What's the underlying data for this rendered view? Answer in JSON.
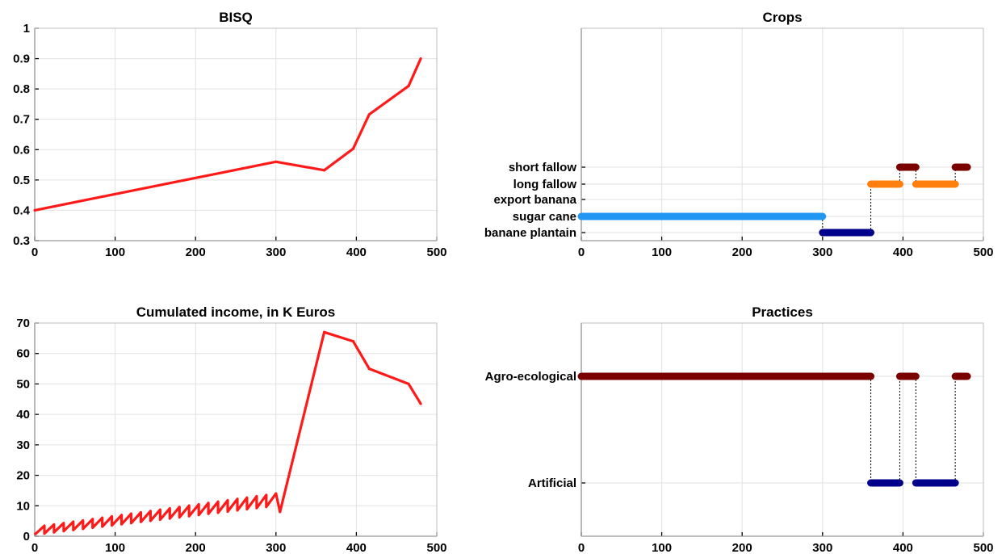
{
  "chart_data": [
    {
      "type": "line",
      "title": "BISQ",
      "xlim": [
        0,
        500
      ],
      "ylim": [
        0.3,
        1
      ],
      "xticks": [
        "0",
        "100",
        "200",
        "300",
        "400",
        "500"
      ],
      "yticks": [
        "0.3",
        "0.4",
        "0.5",
        "0.6",
        "0.7",
        "0.8",
        "0.9",
        "1"
      ],
      "grid": true,
      "series": [
        {
          "color": "#ff1a1a",
          "x": [
            0,
            300,
            360,
            396,
            416,
            465,
            480
          ],
          "y": [
            0.4,
            0.56,
            0.532,
            0.603,
            0.716,
            0.81,
            0.9
          ]
        }
      ]
    },
    {
      "type": "scatter",
      "title": "Crops",
      "xlim": [
        0,
        500
      ],
      "xticks": [
        "0",
        "100",
        "200",
        "300",
        "400",
        "500"
      ],
      "categories": [
        "banane plantain",
        "sugar cane",
        "export banana",
        "long fallow",
        "short fallow"
      ],
      "grid": true,
      "segments": [
        {
          "category": "sugar cane",
          "x": [
            0,
            300
          ],
          "color": "#2196f3"
        },
        {
          "category": "banane plantain",
          "x": [
            300,
            360
          ],
          "color": "#00008b"
        },
        {
          "category": "long fallow",
          "x": [
            360,
            396
          ],
          "color": "#ff7f0e"
        },
        {
          "category": "short fallow",
          "x": [
            396,
            416
          ],
          "color": "#7a0000"
        },
        {
          "category": "long fallow",
          "x": [
            416,
            465
          ],
          "color": "#ff7f0e"
        },
        {
          "category": "short fallow",
          "x": [
            465,
            480
          ],
          "color": "#7a0000"
        }
      ]
    },
    {
      "type": "line",
      "title": "Cumulated income, in K Euros",
      "xlim": [
        0,
        500
      ],
      "ylim": [
        0,
        70
      ],
      "xticks": [
        "0",
        "100",
        "200",
        "300",
        "400",
        "500"
      ],
      "yticks": [
        "0",
        "10",
        "20",
        "30",
        "40",
        "50",
        "60",
        "70"
      ],
      "grid": true,
      "series": [
        {
          "color": "#ff1a1a",
          "sawtooth": {
            "x_start": 0,
            "x_end": 300,
            "period": 12,
            "low_start": 0.5,
            "low_end": 10,
            "high_start": 3,
            "high_end": 14
          },
          "x": [
            300,
            305,
            360,
            396,
            416,
            465,
            480
          ],
          "y": [
            14,
            8,
            67,
            64,
            55,
            50,
            43.5
          ]
        }
      ]
    },
    {
      "type": "scatter",
      "title": "Practices",
      "xlim": [
        0,
        500
      ],
      "xticks": [
        "0",
        "100",
        "200",
        "300",
        "400",
        "500"
      ],
      "categories": [
        "Artificial",
        "Agro-ecological"
      ],
      "grid": true,
      "segments": [
        {
          "category": "Agro-ecological",
          "x": [
            0,
            360
          ],
          "color": "#7a0000"
        },
        {
          "category": "Artificial",
          "x": [
            360,
            396
          ],
          "color": "#00008b"
        },
        {
          "category": "Agro-ecological",
          "x": [
            396,
            416
          ],
          "color": "#7a0000"
        },
        {
          "category": "Artificial",
          "x": [
            416,
            465
          ],
          "color": "#00008b"
        },
        {
          "category": "Agro-ecological",
          "x": [
            465,
            480
          ],
          "color": "#7a0000"
        }
      ]
    }
  ]
}
